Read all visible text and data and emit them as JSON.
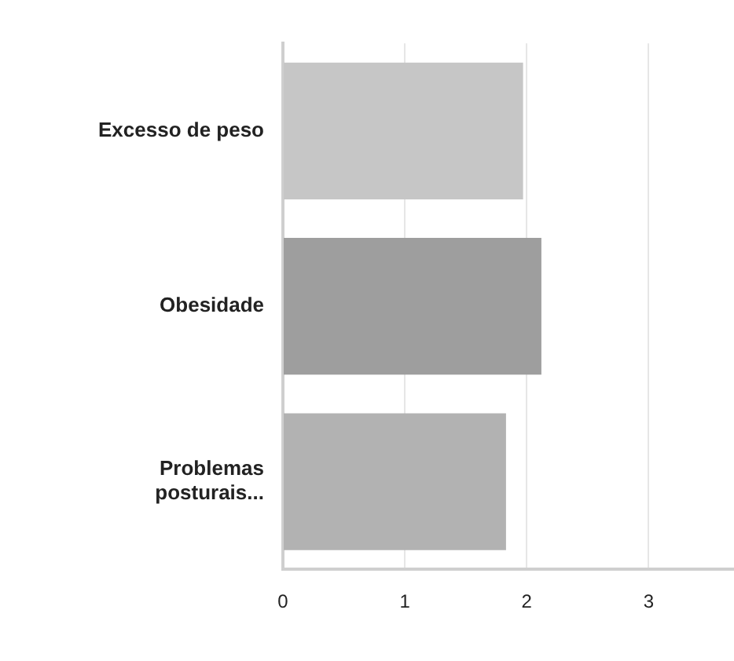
{
  "chart_data": {
    "type": "bar",
    "orientation": "horizontal",
    "categories": [
      "Excesso de peso",
      "Obesidade",
      "Problemas posturais..."
    ],
    "values": [
      1.97,
      2.12,
      1.83
    ],
    "colors": [
      "#c6c6c6",
      "#9e9e9e",
      "#b2b2b2"
    ],
    "xlim": [
      0,
      3.7
    ],
    "xticks": [
      0,
      1,
      2,
      3
    ],
    "grid": "x"
  }
}
